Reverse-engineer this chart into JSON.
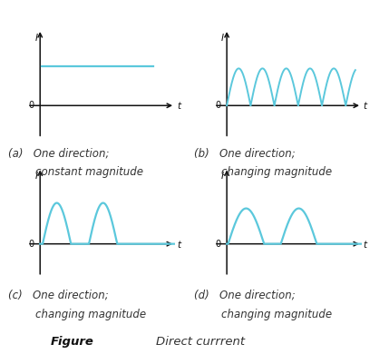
{
  "background_color": "#ffffff",
  "wave_color": "#5bc8dc",
  "axis_color": "#111111",
  "label_color": "#333333",
  "subplots": [
    {
      "id": "a",
      "line1": "(a)   One direction;",
      "line2": "        constant magnitude",
      "type": "dc_flat"
    },
    {
      "id": "b",
      "line1": "(b)   One direction;",
      "line2": "        changing magnitude",
      "type": "half_wave_dense"
    },
    {
      "id": "c",
      "line1": "(c)   One direction;",
      "line2": "        changing magnitude",
      "type": "half_wave_sparse"
    },
    {
      "id": "d",
      "line1": "(d)   One direction;",
      "line2": "        changing magnitude",
      "type": "half_wave_smooth"
    }
  ],
  "footer_left": "Figure",
  "footer_right": "Direct currrent",
  "font_size_label": 8.5,
  "font_size_footer": 9.5
}
